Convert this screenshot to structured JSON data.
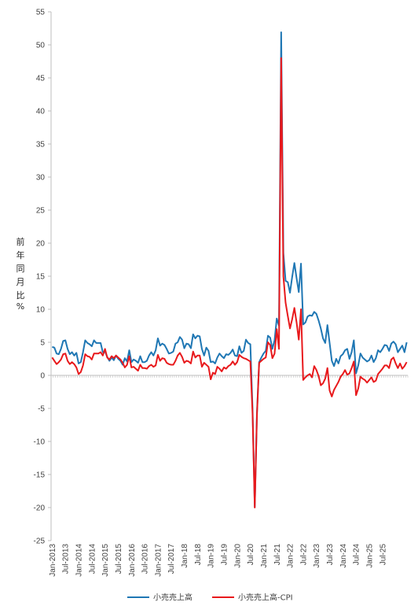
{
  "chart_data": {
    "type": "line",
    "title": "",
    "ylabel_chars": [
      "前",
      "年",
      "同",
      "月",
      "比",
      "%"
    ],
    "ylim": [
      -25,
      55
    ],
    "yticks": [
      55,
      50,
      45,
      40,
      35,
      30,
      25,
      20,
      15,
      10,
      5,
      0,
      -5,
      -10,
      -15,
      -20,
      -25
    ],
    "grid": false,
    "legend_position": "bottom",
    "x_labels": [
      "Jan-2013",
      "Jul-2013",
      "Jan-2014",
      "Jul-2014",
      "Jan-2015",
      "Jul-2015",
      "Jan-2016",
      "Jul-2016",
      "Jan-2017",
      "Jul-2017",
      "Jan-18",
      "Jul-18",
      "Jan-19",
      "Jul-19",
      "Jan-20",
      "Jul-20",
      "Jan-21",
      "Jul-21",
      "Jan-22",
      "Jul-22",
      "Jan-23",
      "Jul-23",
      "Jan-24",
      "Jul-24",
      "Jan-25",
      "Jul-25"
    ],
    "series": [
      {
        "name": "小売売上高",
        "color": "#1f77b4",
        "values": [
          4.3,
          4.2,
          3.3,
          3.2,
          4.0,
          5.2,
          5.3,
          4.0,
          3.2,
          3.5,
          3.0,
          3.4,
          1.8,
          2.0,
          3.5,
          5.3,
          4.9,
          4.7,
          4.4,
          5.3,
          4.9,
          4.9,
          4.9,
          3.5,
          3.6,
          2.8,
          2.2,
          2.7,
          2.3,
          3.0,
          2.5,
          2.2,
          1.6,
          2.6,
          2.1,
          3.8,
          2.0,
          2.4,
          2.2,
          1.9,
          2.9,
          2.0,
          2.0,
          2.2,
          3.0,
          3.5,
          3.0,
          3.8,
          5.6,
          4.5,
          4.8,
          4.6,
          4.0,
          3.3,
          3.4,
          3.6,
          4.8,
          5.0,
          5.8,
          5.4,
          4.1,
          4.8,
          4.7,
          4.1,
          6.2,
          5.6,
          6.0,
          5.9,
          4.0,
          3.0,
          4.2,
          3.7,
          2.0,
          2.1,
          1.8,
          2.7,
          3.3,
          2.9,
          2.6,
          3.2,
          3.1,
          3.4,
          3.9,
          3.0,
          2.9,
          4.4,
          3.4,
          3.7,
          5.4,
          4.9,
          4.7,
          -5.0,
          -19.9,
          -5.7,
          2.0,
          2.7,
          3.3,
          3.7,
          6.0,
          5.7,
          4.0,
          5.3,
          8.6,
          7.5,
          51.9,
          18.5,
          14.3,
          14.1,
          12.5,
          14.9,
          17.0,
          14.7,
          12.6,
          16.9,
          7.7,
          8.0,
          8.9,
          9.1,
          9.0,
          9.6,
          9.3,
          8.3,
          7.1,
          5.6,
          4.9,
          7.6,
          4.9,
          2.2,
          1.4,
          2.5,
          1.8,
          2.9,
          3.2,
          3.8,
          4.0,
          2.5,
          3.5,
          5.3,
          0.3,
          1.5,
          3.3,
          2.7,
          2.4,
          2.1,
          2.3,
          3.0,
          2.0,
          2.6,
          3.8,
          3.5,
          4.0,
          4.6,
          4.5,
          3.7,
          4.8,
          5.1,
          4.7,
          3.5,
          4.0,
          4.5,
          3.5,
          5.0
        ]
      },
      {
        "name": "小売売上高-CPI",
        "color": "#e8191c",
        "values": [
          2.7,
          2.2,
          1.7,
          2.0,
          2.4,
          3.2,
          3.3,
          2.2,
          1.7,
          2.0,
          1.7,
          1.2,
          0.2,
          0.5,
          1.5,
          3.2,
          2.9,
          2.8,
          2.4,
          3.3,
          3.3,
          3.3,
          3.5,
          3.0,
          4.0,
          2.7,
          2.4,
          2.9,
          2.6,
          3.0,
          2.7,
          2.4,
          1.9,
          1.2,
          1.6,
          2.9,
          1.2,
          1.3,
          1.0,
          0.7,
          1.6,
          1.1,
          1.1,
          1.0,
          1.4,
          1.6,
          1.3,
          1.5,
          3.1,
          2.2,
          2.6,
          2.5,
          1.9,
          1.7,
          1.6,
          1.6,
          2.2,
          3.0,
          3.4,
          2.8,
          1.9,
          2.2,
          2.1,
          1.8,
          3.6,
          2.7,
          3.0,
          3.0,
          1.3,
          1.9,
          1.6,
          1.3,
          -0.6,
          0.4,
          0.2,
          1.3,
          1.0,
          0.6,
          1.2,
          1.0,
          1.4,
          1.6,
          2.1,
          1.6,
          2.0,
          3.1,
          2.8,
          2.6,
          2.5,
          2.3,
          2.1,
          -5.8,
          -20.0,
          -6.0,
          1.9,
          2.2,
          2.5,
          2.7,
          5.0,
          4.6,
          2.6,
          3.3,
          7.0,
          4.0,
          48.0,
          15.0,
          11.0,
          9.0,
          7.1,
          8.5,
          10.2,
          8.0,
          5.4,
          10.0,
          -0.7,
          -0.3,
          0.0,
          0.2,
          -0.3,
          1.4,
          0.8,
          -0.1,
          -1.5,
          -1.2,
          -0.5,
          1.1,
          -2.3,
          -3.2,
          -2.2,
          -1.6,
          -1.0,
          -0.2,
          0.2,
          0.8,
          0.1,
          0.3,
          1.1,
          2.1,
          -3.0,
          -2.0,
          -0.2,
          -0.5,
          -0.7,
          -1.1,
          -0.7,
          -0.3,
          -1.0,
          -0.8,
          0.2,
          0.6,
          1.0,
          1.5,
          1.5,
          1.1,
          2.4,
          2.7,
          1.8,
          1.1,
          1.8,
          1.0,
          1.4,
          2.0
        ]
      }
    ]
  }
}
